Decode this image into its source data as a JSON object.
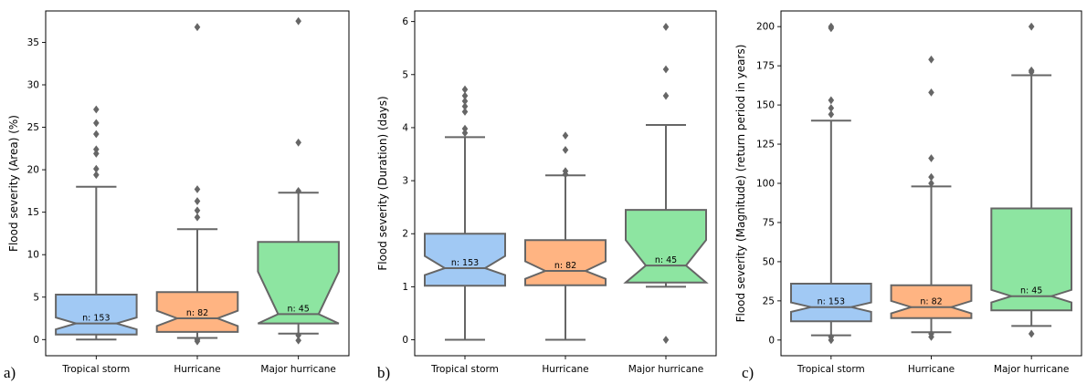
{
  "chart_data": [
    {
      "type": "boxplot",
      "panel_label": "a)",
      "ylabel": "Flood severity (Area) (%)",
      "ylim": [
        -1.9,
        38.7
      ],
      "yticks": [
        0,
        5,
        10,
        15,
        20,
        25,
        30,
        35
      ],
      "notched": true,
      "categories": [
        "Tropical storm",
        "Hurricane",
        "Major hurricane"
      ],
      "boxes": [
        {
          "name": "Tropical storm",
          "color": "#a1c9f4",
          "n_label": "n: 153",
          "whislo": 0,
          "q1": 0.6,
          "med": 1.9,
          "q3": 5.3,
          "whishi": 18.0,
          "notch_lo": 1.2,
          "notch_hi": 2.6,
          "fliers": [
            19.4,
            20.1,
            21.9,
            22.4,
            24.2,
            25.5,
            27.1
          ]
        },
        {
          "name": "Hurricane",
          "color": "#ffb482",
          "n_label": "n: 82",
          "whislo": 0.2,
          "q1": 0.9,
          "med": 2.5,
          "q3": 5.6,
          "whishi": 13.0,
          "notch_lo": 1.6,
          "notch_hi": 3.4,
          "fliers": [
            -0.2,
            0.0,
            14.4,
            15.2,
            16.3,
            17.7,
            36.8
          ]
        },
        {
          "name": "Major hurricane",
          "color": "#8de5a1",
          "n_label": "n: 45",
          "whislo": 0.7,
          "q1": 1.9,
          "med": 3.0,
          "q3": 11.5,
          "whishi": 17.3,
          "notch_lo": 1.9,
          "notch_hi": 8.0,
          "fliers": [
            -0.1,
            0.5,
            17.5,
            23.2,
            37.5
          ]
        }
      ]
    },
    {
      "type": "boxplot",
      "panel_label": "b)",
      "ylabel": "Flood severity (Duration) (days)",
      "ylim": [
        -0.3,
        6.2
      ],
      "yticks": [
        0,
        1,
        2,
        3,
        4,
        5,
        6
      ],
      "notched": true,
      "categories": [
        "Tropical storm",
        "Hurricane",
        "Major hurricane"
      ],
      "boxes": [
        {
          "name": "Tropical storm",
          "color": "#a1c9f4",
          "n_label": "n: 153",
          "whislo": 0,
          "q1": 1.02,
          "med": 1.35,
          "q3": 2.0,
          "whishi": 3.82,
          "notch_lo": 1.22,
          "notch_hi": 1.58,
          "fliers": [
            3.9,
            3.98,
            4.3,
            4.4,
            4.5,
            4.6,
            4.72
          ]
        },
        {
          "name": "Hurricane",
          "color": "#ffb482",
          "n_label": "n: 82",
          "whislo": 0,
          "q1": 1.03,
          "med": 1.3,
          "q3": 1.88,
          "whishi": 3.1,
          "notch_lo": 1.15,
          "notch_hi": 1.48,
          "fliers": [
            3.12,
            3.18,
            3.58,
            3.85
          ]
        },
        {
          "name": "Major hurricane",
          "color": "#8de5a1",
          "n_label": "n: 45",
          "whislo": 1.0,
          "q1": 1.08,
          "med": 1.4,
          "q3": 2.45,
          "whishi": 4.05,
          "notch_lo": 1.08,
          "notch_hi": 1.88,
          "fliers": [
            0.0,
            4.6,
            5.1,
            5.9
          ]
        }
      ]
    },
    {
      "type": "boxplot",
      "panel_label": "c)",
      "ylabel": "Flood severity (Magnitude) (return period in years)",
      "ylim": [
        -10,
        210
      ],
      "yticks": [
        0,
        25,
        50,
        75,
        100,
        125,
        150,
        175,
        200
      ],
      "notched": true,
      "categories": [
        "Tropical storm",
        "Hurricane",
        "Major hurricane"
      ],
      "boxes": [
        {
          "name": "Tropical storm",
          "color": "#a1c9f4",
          "n_label": "n: 153",
          "whislo": 3,
          "q1": 12,
          "med": 21,
          "q3": 36,
          "whishi": 140,
          "notch_lo": 18,
          "notch_hi": 24,
          "fliers": [
            0,
            2,
            144,
            148,
            153,
            199,
            200
          ]
        },
        {
          "name": "Hurricane",
          "color": "#ffb482",
          "n_label": "n: 82",
          "whislo": 5,
          "q1": 14,
          "med": 21,
          "q3": 35,
          "whishi": 98,
          "notch_lo": 17,
          "notch_hi": 25,
          "fliers": [
            2,
            4,
            100,
            104,
            116,
            158,
            179
          ]
        },
        {
          "name": "Major hurricane",
          "color": "#8de5a1",
          "n_label": "n: 45",
          "whislo": 9,
          "q1": 19,
          "med": 28,
          "q3": 84,
          "whishi": 169,
          "notch_lo": 24,
          "notch_hi": 32,
          "fliers": [
            4,
            171,
            172,
            200
          ]
        }
      ]
    }
  ]
}
